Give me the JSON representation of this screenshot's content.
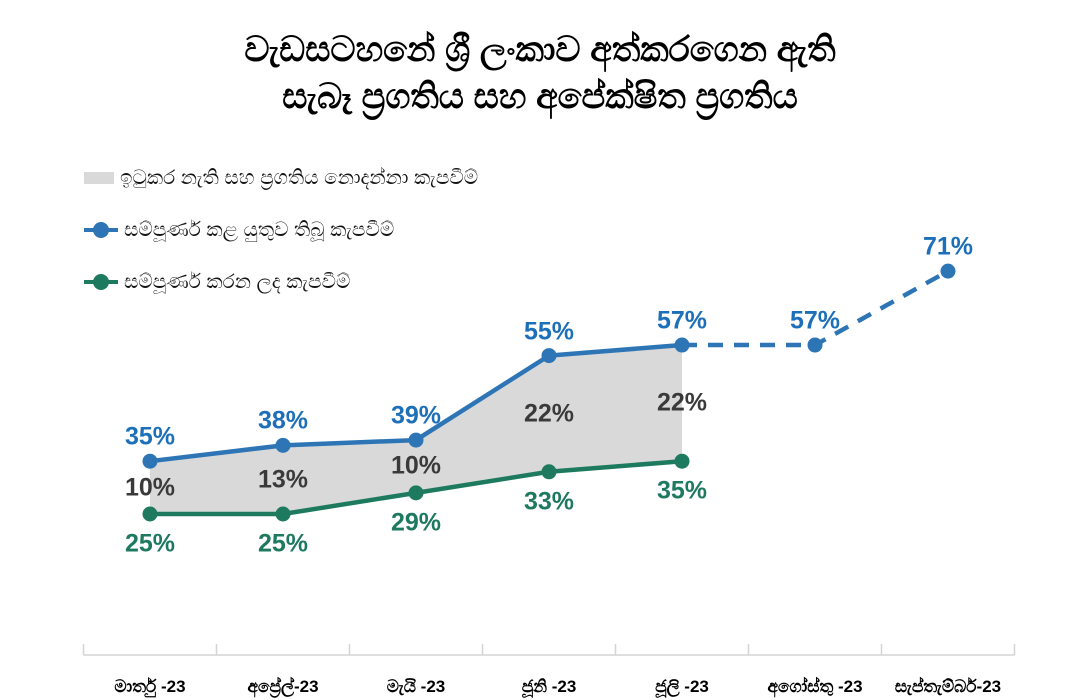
{
  "title": {
    "line1": "වැඩසටහනේ ශ්‍රී ලංකාව අත්කරගෙන ඇති",
    "line2": "සැබෑ ප්‍රගතිය සහ අපේක්ෂිත ප්‍රගතිය"
  },
  "legend": {
    "items": [
      {
        "name": "unfinished-unknown",
        "label": "ඉටුකර නැති සහ ප්‍රගතිය නොදන්නා කැපවීම්",
        "swatch": "area",
        "color": "#D9D9D9"
      },
      {
        "name": "planned",
        "label": "සම්පූර්ණ කළ යුතුව තිබූ කැපවීම්",
        "swatch": "line",
        "color": "#2E75B6"
      },
      {
        "name": "completed",
        "label": "සම්පූර්ණ කරන ලද කැපවීම්",
        "swatch": "line",
        "color": "#1E7A5F"
      }
    ]
  },
  "chart_data": {
    "type": "line",
    "title": "වැඩසටහනේ ශ්‍රී ලංකාව අත්කරගෙන ඇති සැබෑ ප්‍රගතිය සහ අපේක්ෂිත ප්‍රගතිය",
    "categories": [
      "මාර්තු -23",
      "අප්‍රේල්-23",
      "මැයි -23",
      "ජූනි -23",
      "ජූලි -23",
      "අගෝස්තු -23",
      "සැප්තැම්බර්-23"
    ],
    "series": [
      {
        "name": "සම්පූර්ණ කළ යුතුව තිබූ කැපවීම්",
        "values": [
          35,
          38,
          39,
          55,
          57,
          57,
          71
        ],
        "labels": [
          "35%",
          "38%",
          "39%",
          "55%",
          "57%",
          "57%",
          "71%"
        ],
        "color": "#2E75B6",
        "label_color": "#1C6FB8",
        "style": "solid-then-dashed",
        "dashed_from_index": 4,
        "label_position": "above"
      },
      {
        "name": "සම්පූර්ණ කරන ලද කැපවීම්",
        "values": [
          25,
          25,
          29,
          33,
          35,
          null,
          null
        ],
        "labels": [
          "25%",
          "25%",
          "29%",
          "33%",
          "35%"
        ],
        "color": "#1E7A5F",
        "label_color": "#1E7A5F",
        "style": "solid",
        "label_position": "below"
      }
    ],
    "gap_band": {
      "name": "ඉටුකර නැති සහ ප්‍රගතිය නොදන්නා කැපවීම්",
      "values": [
        10,
        13,
        10,
        22,
        22
      ],
      "labels": [
        "10%",
        "13%",
        "10%",
        "22%",
        "22%"
      ],
      "fill_color": "#D9D9D9",
      "label_color": "#3A3A3A"
    },
    "ylim": [
      0,
      100
    ],
    "grid": false,
    "legend_position": "top-left",
    "axis_color": "#D4D4D4",
    "xaxis_tick_marks": true
  }
}
